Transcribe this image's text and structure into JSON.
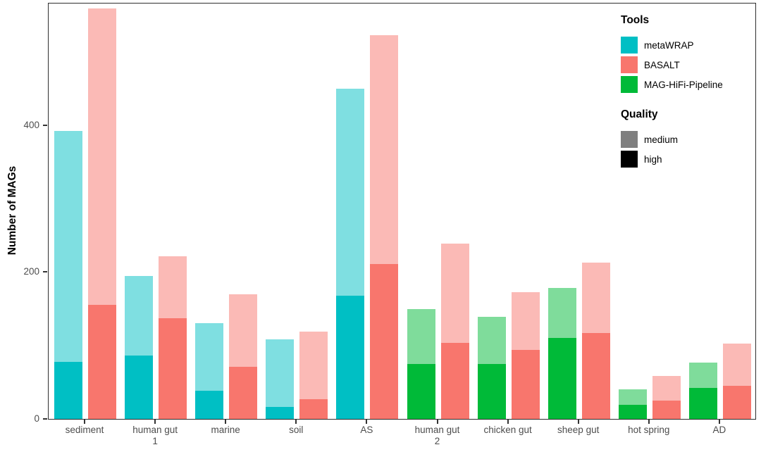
{
  "y_axis": {
    "title": "Number of MAGs",
    "tick_labels": [
      "0",
      "200",
      "400"
    ]
  },
  "legend": {
    "tools_title": "Tools",
    "tools": [
      {
        "label": "metaWRAP",
        "color": "#00BFC4"
      },
      {
        "label": "BASALT",
        "color": "#F8766D"
      },
      {
        "label": "MAG-HiFi-Pipeline",
        "color": "#00BA38"
      }
    ],
    "quality_title": "Quality",
    "quality": [
      {
        "label": "medium",
        "color": "#7F7F7F"
      },
      {
        "label": "high",
        "color": "#000000"
      }
    ]
  },
  "chart_data": {
    "type": "bar",
    "title": "",
    "xlabel": "",
    "ylabel": "Number of MAGs",
    "ylim": [
      0,
      568
    ],
    "yticks": [
      0,
      200,
      400
    ],
    "grid": false,
    "legend_position": "top-right-inside",
    "quality_levels": [
      "medium",
      "high"
    ],
    "stacking": "each bar is stacked: dark (high quality) at bottom, translucent (medium quality) on top; total = high + medium",
    "tool_colors": {
      "metaWRAP": {
        "high": "#00BFC4",
        "medium": "#7FDFE1"
      },
      "BASALT": {
        "high": "#F8766D",
        "medium": "#FBBAB6"
      },
      "MAG-HiFi-Pipeline": {
        "high": "#00BA38",
        "medium": "#7FDC9B"
      }
    },
    "groups": [
      {
        "label": "sediment",
        "bars": [
          {
            "tool": "metaWRAP",
            "high": 78,
            "medium": 314,
            "total": 392
          },
          {
            "tool": "BASALT",
            "high": 155,
            "medium": 404,
            "total": 559
          }
        ]
      },
      {
        "label": "human gut\n1",
        "bars": [
          {
            "tool": "metaWRAP",
            "high": 86,
            "medium": 109,
            "total": 195
          },
          {
            "tool": "BASALT",
            "high": 137,
            "medium": 85,
            "total": 222
          }
        ]
      },
      {
        "label": "marine",
        "bars": [
          {
            "tool": "metaWRAP",
            "high": 38,
            "medium": 92,
            "total": 130
          },
          {
            "tool": "BASALT",
            "high": 71,
            "medium": 99,
            "total": 170
          }
        ]
      },
      {
        "label": "soil",
        "bars": [
          {
            "tool": "metaWRAP",
            "high": 16,
            "medium": 92,
            "total": 108
          },
          {
            "tool": "BASALT",
            "high": 27,
            "medium": 92,
            "total": 119
          }
        ]
      },
      {
        "label": "AS",
        "bars": [
          {
            "tool": "metaWRAP",
            "high": 168,
            "medium": 282,
            "total": 450
          },
          {
            "tool": "BASALT",
            "high": 211,
            "medium": 312,
            "total": 523
          }
        ]
      },
      {
        "label": "human gut\n2",
        "bars": [
          {
            "tool": "MAG-HiFi-Pipeline",
            "high": 75,
            "medium": 75,
            "total": 150
          },
          {
            "tool": "BASALT",
            "high": 104,
            "medium": 135,
            "total": 239
          }
        ]
      },
      {
        "label": "chicken gut",
        "bars": [
          {
            "tool": "MAG-HiFi-Pipeline",
            "high": 75,
            "medium": 64,
            "total": 139
          },
          {
            "tool": "BASALT",
            "high": 94,
            "medium": 79,
            "total": 173
          }
        ]
      },
      {
        "label": "sheep gut",
        "bars": [
          {
            "tool": "MAG-HiFi-Pipeline",
            "high": 110,
            "medium": 68,
            "total": 178
          },
          {
            "tool": "BASALT",
            "high": 117,
            "medium": 96,
            "total": 213
          }
        ]
      },
      {
        "label": "hot spring",
        "bars": [
          {
            "tool": "MAG-HiFi-Pipeline",
            "high": 19,
            "medium": 21,
            "total": 40
          },
          {
            "tool": "BASALT",
            "high": 25,
            "medium": 34,
            "total": 59
          }
        ]
      },
      {
        "label": "AD",
        "bars": [
          {
            "tool": "MAG-HiFi-Pipeline",
            "high": 42,
            "medium": 35,
            "total": 77
          },
          {
            "tool": "BASALT",
            "high": 45,
            "medium": 58,
            "total": 103
          }
        ]
      }
    ]
  }
}
